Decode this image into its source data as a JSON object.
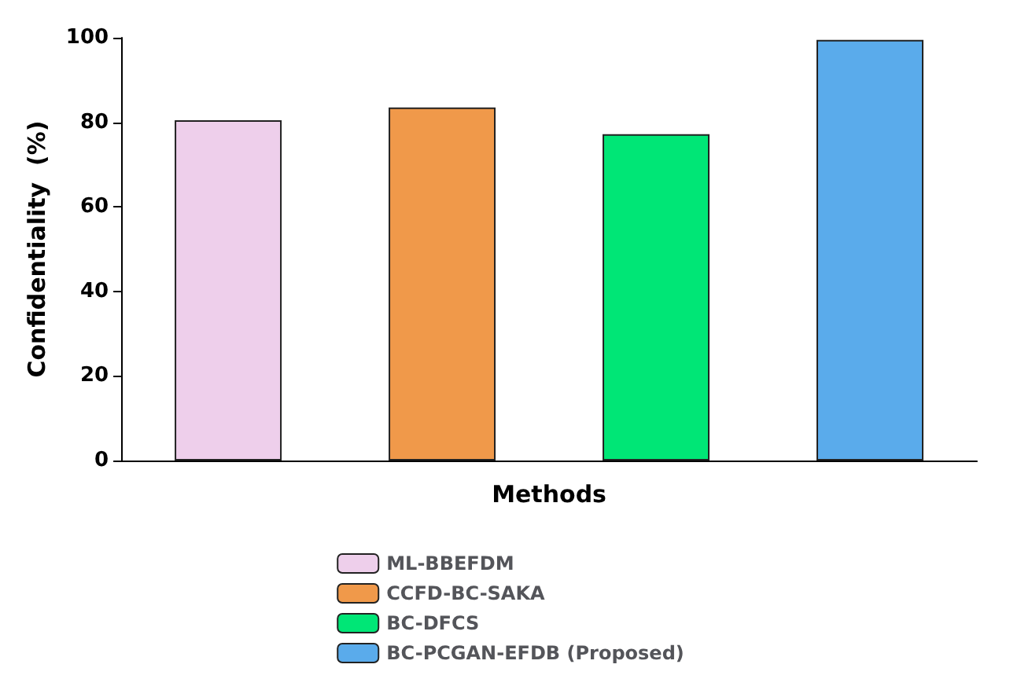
{
  "chart_data": {
    "type": "bar",
    "xlabel": "Methods",
    "ylabel": "Confidentiality  (%)",
    "categories": [
      null,
      null,
      null,
      null
    ],
    "series": [
      {
        "name": "ML-BBEFDM",
        "color": "#eecfeb",
        "values": [
          80.5,
          null,
          null,
          null
        ]
      },
      {
        "name": "CCFD-BC-SAKA",
        "color": "#f0994a",
        "values": [
          null,
          83.5,
          null,
          null
        ]
      },
      {
        "name": "BC-DFCS",
        "color": "#00e676",
        "values": [
          null,
          null,
          77.2,
          null
        ]
      },
      {
        "name": "BC-PCGAN-EFDB (Proposed)",
        "color": "#5aabeb",
        "values": [
          null,
          null,
          null,
          99.5
        ]
      }
    ],
    "ylim": [
      0,
      100
    ],
    "yticks": [
      0,
      20,
      40,
      60,
      80,
      100
    ],
    "grid": false,
    "legend": "bottom"
  }
}
